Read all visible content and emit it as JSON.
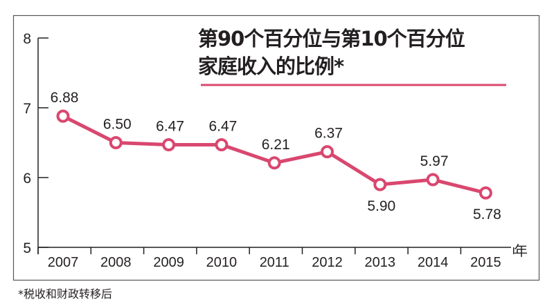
{
  "chart_data": {
    "type": "line",
    "title": "第90个百分位与第10个百分位家庭收入的比例*",
    "title_lines": [
      "第90个百分位与第10个百分位",
      "家庭收入的比例*"
    ],
    "categories": [
      "2007",
      "2008",
      "2009",
      "2010",
      "2011",
      "2012",
      "2013",
      "2014",
      "2015"
    ],
    "values": [
      6.88,
      6.5,
      6.47,
      6.47,
      6.21,
      6.37,
      5.9,
      5.97,
      5.78
    ],
    "data_labels": [
      "6.88",
      "6.50",
      "6.47",
      "6.47",
      "6.21",
      "6.37",
      "5.90",
      "5.97",
      "5.78"
    ],
    "label_below": [
      false,
      false,
      false,
      false,
      false,
      false,
      true,
      false,
      true
    ],
    "xlabel": "年",
    "ylabel": "",
    "ylim": [
      5,
      8
    ],
    "yticks": [
      "5",
      "6",
      "7",
      "8"
    ],
    "grid": false,
    "legend": "none",
    "line_color": "#d9476f",
    "footnote": "*税收和财政转移后"
  }
}
